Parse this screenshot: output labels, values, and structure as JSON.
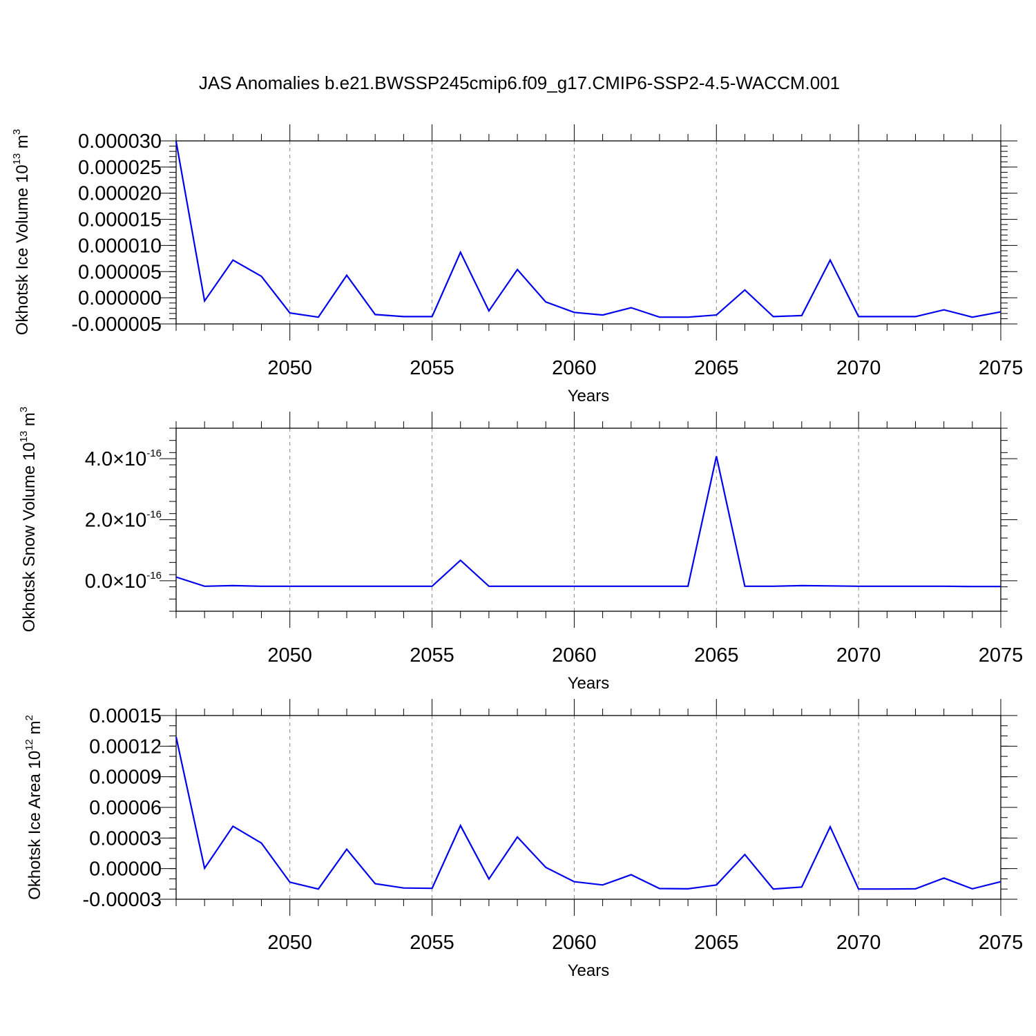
{
  "figure": {
    "title": "JAS Anomalies b.e21.BWSSP245cmip6.f09_g17.CMIP6-SSP2-4.5-WACCM.001"
  },
  "chart_data": [
    {
      "type": "line",
      "xlabel": "Years",
      "ylabel": {
        "main": "Okhotsk Ice Volume 10",
        "exp": "13",
        "unit": " m",
        "unit_exp": "3"
      },
      "xlim": [
        2046,
        2075
      ],
      "ylim": [
        -5e-06,
        3e-05
      ],
      "grid": "vertical-dashed",
      "x_ticks": [
        2050,
        2055,
        2060,
        2065,
        2070,
        2075
      ],
      "y_ticks": [
        {
          "value": 3e-05,
          "label": "0.000030"
        },
        {
          "value": 2.5e-05,
          "label": "0.000025"
        },
        {
          "value": 2e-05,
          "label": "0.000020"
        },
        {
          "value": 1.5e-05,
          "label": "0.000015"
        },
        {
          "value": 1e-05,
          "label": "0.000010"
        },
        {
          "value": 5e-06,
          "label": "0.000005"
        },
        {
          "value": 0.0,
          "label": "0.000000"
        },
        {
          "value": -5e-06,
          "label": "-0.000005"
        }
      ],
      "y_minor_step": 1e-06,
      "color": "#0000ee",
      "x": [
        2046,
        2047,
        2048,
        2049,
        2050,
        2051,
        2052,
        2053,
        2054,
        2055,
        2056,
        2057,
        2058,
        2059,
        2060,
        2061,
        2062,
        2063,
        2064,
        2065,
        2066,
        2067,
        2068,
        2069,
        2070,
        2071,
        2072,
        2073,
        2074,
        2075
      ],
      "y": [
        2.99e-05,
        -6e-07,
        7.2e-06,
        4.1e-06,
        -2.9e-06,
        -3.7e-06,
        4.3e-06,
        -3.2e-06,
        -3.6e-06,
        -3.6e-06,
        8.7e-06,
        -2.5e-06,
        5.4e-06,
        -8e-07,
        -2.8e-06,
        -3.3e-06,
        -1.9e-06,
        -3.7e-06,
        -3.7e-06,
        -3.3e-06,
        1.5e-06,
        -3.6e-06,
        -3.4e-06,
        7.2e-06,
        -3.6e-06,
        -3.6e-06,
        -3.6e-06,
        -2.3e-06,
        -3.7e-06,
        -2.7e-06
      ]
    },
    {
      "type": "line",
      "xlabel": "Years",
      "ylabel": {
        "main": "Okhotsk Snow Volume 10",
        "exp": "13",
        "unit": " m",
        "unit_exp": "3"
      },
      "xlim": [
        2046,
        2075
      ],
      "ylim": [
        -1e-16,
        5e-16
      ],
      "grid": "vertical-dashed",
      "x_ticks": [
        2050,
        2055,
        2060,
        2065,
        2070,
        2075
      ],
      "y_ticks": [
        {
          "value": 4e-16,
          "label": "4.0×10",
          "exp": "-16"
        },
        {
          "value": 2e-16,
          "label": "2.0×10",
          "exp": "-16"
        },
        {
          "value": 0,
          "label": "0.0×10",
          "exp": "-16"
        }
      ],
      "y_minor_step": 4e-17,
      "color": "#0000ee",
      "x": [
        2046,
        2047,
        2048,
        2049,
        2050,
        2051,
        2052,
        2053,
        2054,
        2055,
        2056,
        2057,
        2058,
        2059,
        2060,
        2061,
        2062,
        2063,
        2064,
        2065,
        2066,
        2067,
        2068,
        2069,
        2070,
        2071,
        2072,
        2073,
        2074,
        2075
      ],
      "y": [
        1.2e-17,
        -1.8e-17,
        -1.6e-17,
        -1.8e-17,
        -1.8e-17,
        -1.8e-17,
        -1.8e-17,
        -1.8e-17,
        -1.8e-17,
        -1.8e-17,
        6.7e-17,
        -1.8e-17,
        -1.8e-17,
        -1.8e-17,
        -1.8e-17,
        -1.8e-17,
        -1.8e-17,
        -1.8e-17,
        -1.8e-17,
        4.08e-16,
        -1.8e-17,
        -1.8e-17,
        -1.6e-17,
        -1.7e-17,
        -1.8e-17,
        -1.8e-17,
        -1.8e-17,
        -1.8e-17,
        -1.9e-17,
        -1.9e-17
      ]
    },
    {
      "type": "line",
      "xlabel": "Years",
      "ylabel": {
        "main": "Okhotsk Ice Area 10",
        "exp": "12",
        "unit": " m",
        "unit_exp": "2"
      },
      "xlim": [
        2046,
        2075
      ],
      "ylim": [
        -3e-05,
        0.00015
      ],
      "grid": "vertical-dashed",
      "x_ticks": [
        2050,
        2055,
        2060,
        2065,
        2070,
        2075
      ],
      "y_ticks": [
        {
          "value": 0.00015,
          "label": "0.00015"
        },
        {
          "value": 0.00012,
          "label": "0.00012"
        },
        {
          "value": 9e-05,
          "label": "0.00009"
        },
        {
          "value": 6e-05,
          "label": "0.00006"
        },
        {
          "value": 3e-05,
          "label": "0.00003"
        },
        {
          "value": 0.0,
          "label": "0.00000"
        },
        {
          "value": -3e-05,
          "label": "-0.00003"
        }
      ],
      "y_minor_step": 1e-05,
      "color": "#0000ee",
      "x": [
        2046,
        2047,
        2048,
        2049,
        2050,
        2051,
        2052,
        2053,
        2054,
        2055,
        2056,
        2057,
        2058,
        2059,
        2060,
        2061,
        2062,
        2063,
        2064,
        2065,
        2066,
        2067,
        2068,
        2069,
        2070,
        2071,
        2072,
        2073,
        2074,
        2075
      ],
      "y": [
        0.000129,
        4e-07,
        4.15e-05,
        2.5e-05,
        -1.33e-05,
        -2e-05,
        1.9e-05,
        -1.48e-05,
        -1.9e-05,
        -1.93e-05,
        4.22e-05,
        -1.02e-05,
        3.1e-05,
        1.2e-06,
        -1.28e-05,
        -1.6e-05,
        -6e-06,
        -1.95e-05,
        -1.98e-05,
        -1.6e-05,
        1.38e-05,
        -2e-05,
        -1.8e-05,
        4.1e-05,
        -2e-05,
        -2e-05,
        -1.98e-05,
        -9.2e-06,
        -1.98e-05,
        -1.28e-05
      ]
    }
  ]
}
